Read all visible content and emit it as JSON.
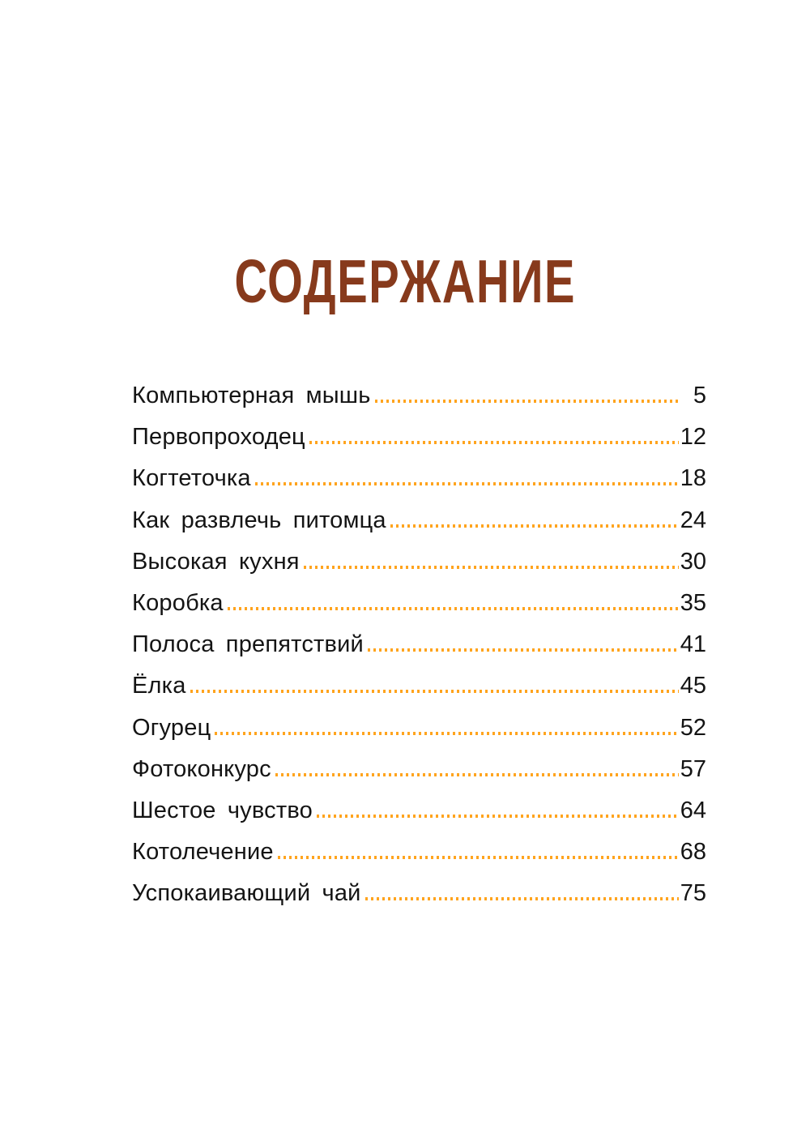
{
  "page": {
    "title": "СОДЕРЖАНИЕ"
  },
  "colors": {
    "color-title": "#873A1C",
    "color-dots": "#FFA41E",
    "color-text": "#141414",
    "color-bg": "#FFFFFF"
  },
  "toc": {
    "entries": [
      {
        "label": "Компьютерная мышь",
        "page": "5"
      },
      {
        "label": "Первопроходец",
        "page": "12"
      },
      {
        "label": "Когтеточка",
        "page": "18"
      },
      {
        "label": "Как развлечь питомца",
        "page": "24"
      },
      {
        "label": "Высокая кухня",
        "page": "30"
      },
      {
        "label": "Коробка",
        "page": "35"
      },
      {
        "label": "Полоса препятствий",
        "page": "41"
      },
      {
        "label": "Ёлка",
        "page": "45"
      },
      {
        "label": "Огурец",
        "page": "52"
      },
      {
        "label": "Фотоконкурс",
        "page": "57"
      },
      {
        "label": "Шестое чувство",
        "page": "64"
      },
      {
        "label": "Котолечение",
        "page": "68"
      },
      {
        "label": "Успокаивающий чай",
        "page": "75"
      }
    ]
  }
}
